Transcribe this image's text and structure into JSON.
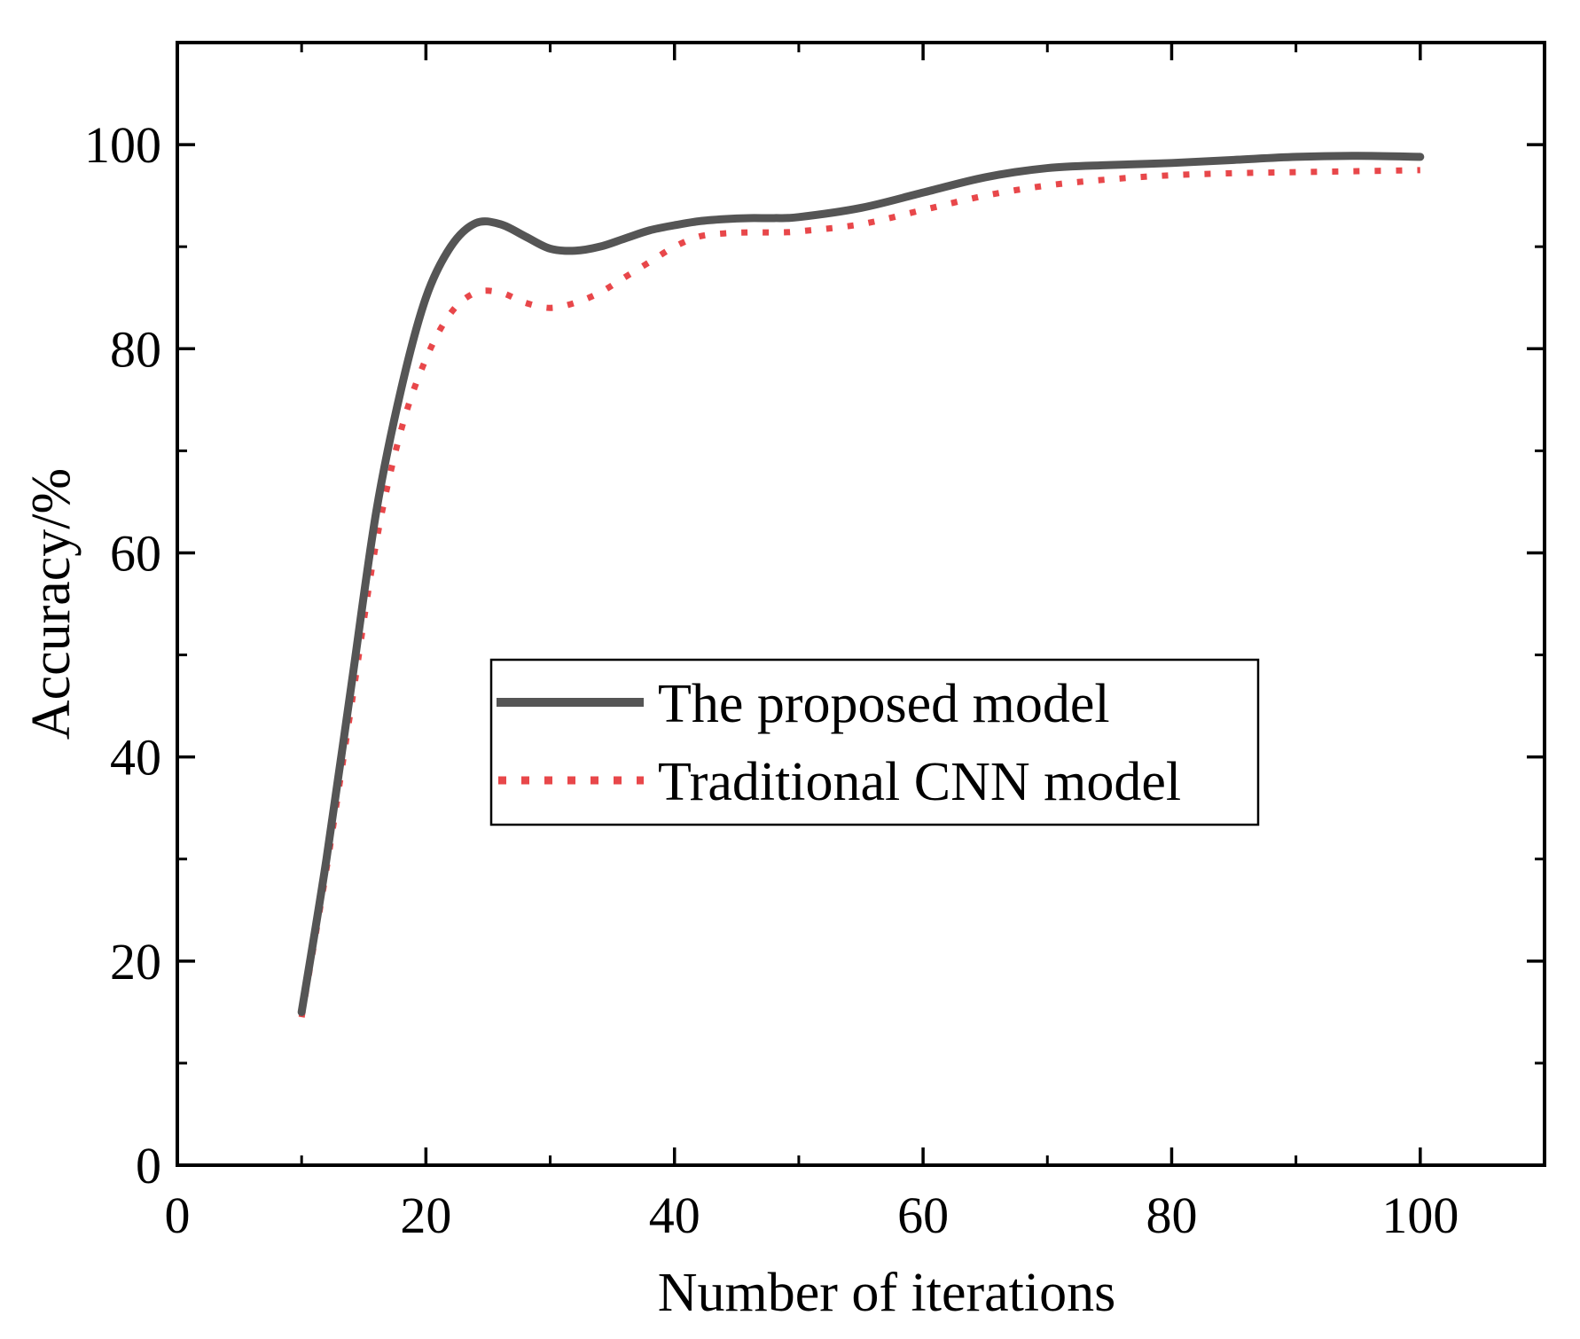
{
  "chart_data": {
    "type": "line",
    "title": "",
    "xlabel": "Number of iterations",
    "ylabel": "Accuracy/%",
    "xlim": [
      0,
      110
    ],
    "ylim": [
      0,
      110
    ],
    "x_ticks": [
      0,
      20,
      40,
      60,
      80,
      100
    ],
    "y_ticks": [
      0,
      20,
      40,
      60,
      80,
      100
    ],
    "x_tick_labels": [
      "0",
      "20",
      "40",
      "60",
      "80",
      "100"
    ],
    "y_tick_labels": [
      "0",
      "20",
      "40",
      "60",
      "80",
      "100"
    ],
    "legend_position": "center",
    "series": [
      {
        "name": "The proposed model",
        "style": "solid",
        "color": "#555555",
        "x": [
          10,
          12,
          14,
          16,
          18,
          20,
          22,
          24,
          26,
          28,
          30,
          32,
          34,
          36,
          38,
          40,
          42,
          44,
          46,
          48,
          50,
          55,
          60,
          65,
          70,
          75,
          80,
          85,
          90,
          95,
          100
        ],
        "y": [
          15,
          30,
          47,
          64,
          76,
          85,
          90,
          92.3,
          92.2,
          91,
          89.8,
          89.6,
          90,
          90.8,
          91.6,
          92.1,
          92.5,
          92.7,
          92.8,
          92.8,
          92.9,
          93.8,
          95.3,
          96.8,
          97.7,
          98,
          98.2,
          98.5,
          98.8,
          98.9,
          98.8
        ]
      },
      {
        "name": "Traditional CNN model",
        "style": "dotted",
        "color": "#e8474a",
        "x": [
          10,
          12,
          14,
          16,
          18,
          20,
          22,
          24,
          26,
          28,
          30,
          32,
          34,
          36,
          38,
          40,
          42,
          44,
          46,
          48,
          50,
          55,
          60,
          65,
          70,
          75,
          80,
          85,
          90,
          95,
          100
        ],
        "y": [
          14.5,
          29,
          45,
          61,
          72,
          79,
          83.5,
          85.5,
          85.5,
          84.5,
          84,
          84.5,
          85.5,
          87,
          88.5,
          90,
          91,
          91.3,
          91.4,
          91.4,
          91.5,
          92.2,
          93.6,
          95,
          96,
          96.6,
          97,
          97.2,
          97.3,
          97.4,
          97.5
        ]
      }
    ]
  }
}
